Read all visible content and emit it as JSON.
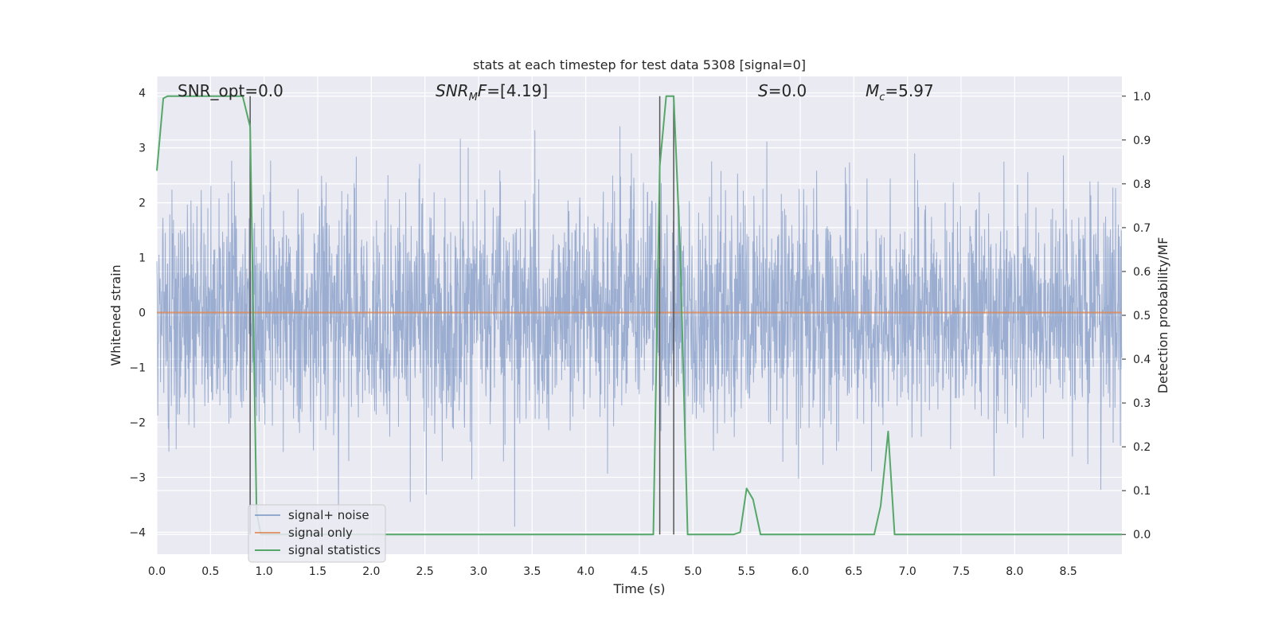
{
  "chart_data": {
    "type": "line",
    "title": "stats at each timestep for test data 5308 [signal=0]",
    "xlabel": "Time (s)",
    "ylabel": "Whitened strain",
    "ylabel_right": "Detection probability/MF",
    "xlim": [
      0,
      9
    ],
    "ylim": [
      -4.4,
      4.3
    ],
    "ylim_right": [
      -0.045,
      1.045
    ],
    "x_ticks": [
      "0.0",
      "0.5",
      "1.0",
      "1.5",
      "2.0",
      "2.5",
      "3.0",
      "3.5",
      "4.0",
      "4.5",
      "5.0",
      "5.5",
      "6.0",
      "6.5",
      "7.0",
      "7.5",
      "8.0",
      "8.5"
    ],
    "y_ticks": [
      "4",
      "3",
      "2",
      "1",
      "0",
      "−1",
      "−2",
      "−3",
      "−4"
    ],
    "y_ticks_right": [
      "1.0",
      "0.9",
      "0.8",
      "0.7",
      "0.6",
      "0.5",
      "0.4",
      "0.3",
      "0.2",
      "0.1",
      "0.0"
    ],
    "grid": true,
    "legend_position": "lower-left",
    "annotations": {
      "snr_opt": "SNR_opt=0.0",
      "snr_mf": "=[4.19]",
      "s_stat": "=0.0",
      "mc": "=5.97"
    },
    "vertical_markers_x": [
      0.87,
      4.69,
      4.82
    ],
    "series": [
      {
        "name": "signal+ noise",
        "color": "#4c72b0",
        "axis": "left",
        "noise_sigma": 1.0,
        "peak_max": 3.95,
        "peak_min": -3.9
      },
      {
        "name": "signal only",
        "color": "#dd8452",
        "axis": "left",
        "x": [
          0,
          9
        ],
        "y": [
          0,
          0
        ]
      },
      {
        "name": "signal statistics",
        "color": "#55a868",
        "axis": "right",
        "x": [
          0,
          0.06,
          0.1,
          0.2,
          0.3,
          0.4,
          0.5,
          0.6,
          0.7,
          0.8,
          0.87,
          0.93,
          0.97,
          1.2,
          2.0,
          3.0,
          4.0,
          4.5,
          4.63,
          4.69,
          4.75,
          4.82,
          4.88,
          4.95,
          5.0,
          5.2,
          5.38,
          5.44,
          5.5,
          5.56,
          5.63,
          5.8,
          6.0,
          6.5,
          6.69,
          6.75,
          6.82,
          6.88,
          6.95,
          7.2,
          8.0,
          9.0
        ],
        "y": [
          0.83,
          0.995,
          1.0,
          1.0,
          1.0,
          1.0,
          1.0,
          1.0,
          1.0,
          1.0,
          0.93,
          0.05,
          0.0,
          0.0,
          0.0,
          0.0,
          0.0,
          0.0,
          0.0,
          0.84,
          1.0,
          1.0,
          0.65,
          0.0,
          0.0,
          0.0,
          0.0,
          0.005,
          0.105,
          0.08,
          0.0,
          0.0,
          0.0,
          0.0,
          0.0,
          0.065,
          0.235,
          0.0,
          0.0,
          0.0,
          0.0,
          0.0
        ]
      }
    ]
  }
}
